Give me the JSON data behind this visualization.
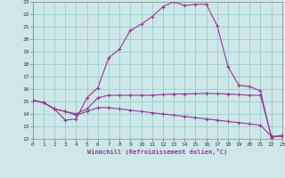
{
  "xlabel": "Windchill (Refroidissement éolien,°C)",
  "bg_color": "#cce8e8",
  "grid_color": "#99cccc",
  "line_color": "#993399",
  "xlim": [
    0,
    23
  ],
  "ylim": [
    12,
    23
  ],
  "xticks": [
    0,
    1,
    2,
    3,
    4,
    5,
    6,
    7,
    8,
    9,
    10,
    11,
    12,
    13,
    14,
    15,
    16,
    17,
    18,
    19,
    20,
    21,
    22,
    23
  ],
  "yticks": [
    12,
    13,
    14,
    15,
    16,
    17,
    18,
    19,
    20,
    21,
    22,
    23
  ],
  "s1_x": [
    0,
    1,
    2,
    3,
    4,
    5,
    6,
    7,
    8,
    9,
    10,
    11,
    12,
    13,
    14,
    15,
    16,
    17,
    18,
    19,
    20,
    21,
    22,
    23
  ],
  "s1_y": [
    15.1,
    14.9,
    14.4,
    13.5,
    13.6,
    15.3,
    16.1,
    18.5,
    19.2,
    20.7,
    21.2,
    21.8,
    22.6,
    23.0,
    22.7,
    22.8,
    22.8,
    21.1,
    17.8,
    16.3,
    16.2,
    15.85,
    12.1,
    12.3
  ],
  "s2_x": [
    0,
    1,
    2,
    3,
    4,
    5,
    6,
    7,
    8,
    9,
    10,
    11,
    12,
    13,
    14,
    15,
    16,
    17,
    18,
    19,
    20,
    21,
    22,
    23
  ],
  "s2_y": [
    15.1,
    14.9,
    14.4,
    14.2,
    14.0,
    14.4,
    15.3,
    15.5,
    15.5,
    15.5,
    15.5,
    15.5,
    15.55,
    15.6,
    15.6,
    15.62,
    15.65,
    15.62,
    15.6,
    15.55,
    15.5,
    15.5,
    12.2,
    12.2
  ],
  "s3_x": [
    0,
    1,
    2,
    3,
    4,
    5,
    6,
    7,
    8,
    9,
    10,
    11,
    12,
    13,
    14,
    15,
    16,
    17,
    18,
    19,
    20,
    21,
    22,
    23
  ],
  "s3_y": [
    15.1,
    14.9,
    14.4,
    14.2,
    13.9,
    14.2,
    14.5,
    14.5,
    14.4,
    14.3,
    14.2,
    14.1,
    14.0,
    13.9,
    13.8,
    13.7,
    13.6,
    13.5,
    13.4,
    13.3,
    13.2,
    13.1,
    12.2,
    12.2
  ]
}
